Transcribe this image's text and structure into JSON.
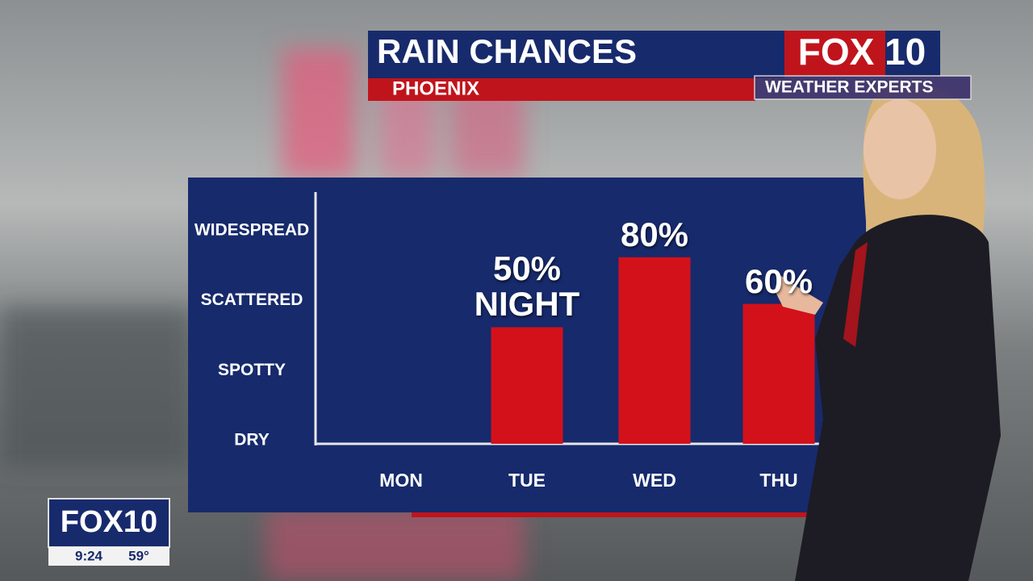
{
  "chart_data": {
    "type": "bar",
    "title": "RAIN CHANCES",
    "subtitle": "PHOENIX",
    "categories": [
      "MON",
      "TUE",
      "WED",
      "THU"
    ],
    "values": [
      null,
      50,
      80,
      60
    ],
    "value_labels": [
      null,
      "50% NIGHT",
      "80%",
      "60%"
    ],
    "color": "#d3111b",
    "ylim": [
      0,
      100
    ],
    "yticks": [
      {
        "value": 0,
        "label": "DRY"
      },
      {
        "value": 30,
        "label": "SPOTTY"
      },
      {
        "value": 60,
        "label": "SCATTERED"
      },
      {
        "value": 90,
        "label": "WIDESPREAD"
      }
    ],
    "grid": false
  },
  "broadcast": {
    "logo": "FOX 10",
    "logo_tagline": "WEATHER EXPERTS",
    "bug_logo": "FOX10",
    "time": "9:24",
    "temperature": "59°"
  }
}
